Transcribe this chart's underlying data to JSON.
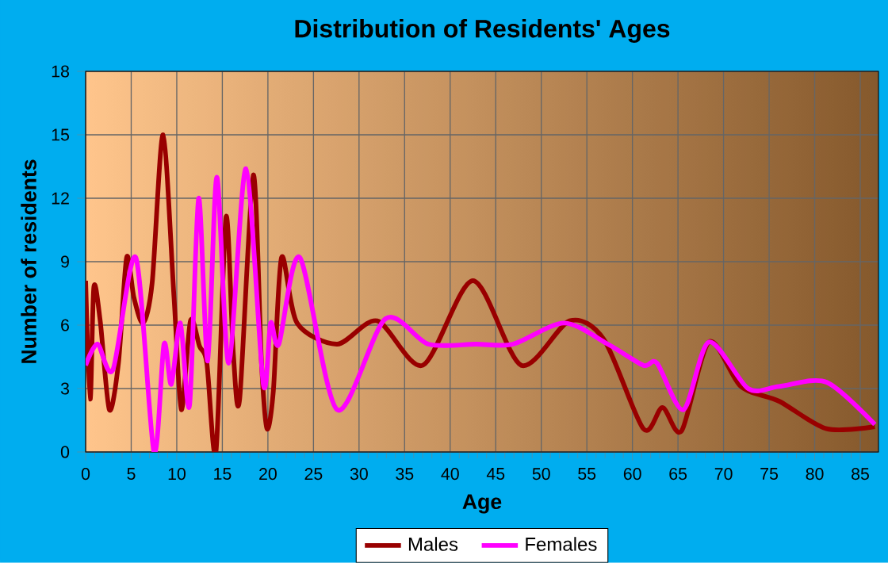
{
  "chart_data": {
    "type": "line",
    "title": "Distribution of Residents' Ages",
    "xlabel": "Age",
    "ylabel": "Number of residents",
    "xlim": [
      0,
      87
    ],
    "xticks": [
      0,
      5,
      10,
      15,
      20,
      25,
      30,
      35,
      40,
      45,
      50,
      55,
      60,
      65,
      70,
      75,
      80,
      85
    ],
    "ylim": [
      0,
      18
    ],
    "yticks": [
      0,
      3,
      6,
      9,
      12,
      15,
      18
    ],
    "grid": true,
    "legend": "bottom",
    "marker": "none",
    "line_style": "solid",
    "series": [
      {
        "name": "Males",
        "color": "#990000",
        "x": [
          0,
          0.5,
          0.9,
          1.6,
          2.6,
          3.6,
          4.5,
          5.3,
          6.3,
          7.3,
          8.5,
          9.7,
          10.5,
          11.5,
          12.5,
          13.3,
          14.3,
          15.4,
          16.2,
          16.9,
          18.4,
          19.3,
          19.9,
          20.6,
          21.5,
          23.2,
          27.6,
          32.0,
          37.0,
          42.5,
          47.8,
          53.1,
          56.9,
          61.2,
          63.3,
          65.4,
          68.4,
          71.9,
          76.1,
          81.3,
          86.6
        ],
        "values": [
          8.1,
          2.5,
          7.8,
          6.2,
          2.0,
          4.2,
          9.2,
          7.3,
          6.1,
          8.0,
          15.0,
          7.3,
          2.0,
          6.2,
          5.0,
          4.2,
          0,
          11.1,
          4.7,
          2.5,
          13.1,
          4.2,
          1.1,
          2.9,
          9.2,
          6.1,
          5.1,
          6.2,
          4.1,
          8.1,
          4.1,
          6.2,
          5.3,
          1.1,
          2.1,
          1.0,
          5.2,
          3.1,
          2.4,
          1.1,
          1.2
        ]
      },
      {
        "name": "Females",
        "color": "#ff00ff",
        "x": [
          0,
          1.3,
          3.0,
          5.5,
          7.5,
          8.6,
          9.4,
          10.4,
          11.4,
          12.4,
          13.4,
          14.4,
          15.7,
          17.6,
          19.5,
          20.3,
          21.2,
          23.5,
          27.6,
          32.9,
          37.6,
          42.8,
          46.9,
          52.5,
          57.3,
          61.2,
          62.7,
          65.6,
          68.4,
          72.7,
          76.1,
          81.3,
          86.6
        ],
        "values": [
          4.1,
          5.1,
          3.9,
          9.2,
          0,
          5.1,
          3.2,
          6.1,
          2.2,
          12.0,
          4.3,
          13.0,
          4.2,
          13.4,
          3.2,
          6.1,
          5.1,
          9.2,
          2.0,
          6.3,
          5.1,
          5.1,
          5.1,
          6.1,
          5.1,
          4.1,
          4.2,
          2.0,
          5.2,
          3.0,
          3.1,
          3.3,
          1.3
        ]
      }
    ]
  }
}
